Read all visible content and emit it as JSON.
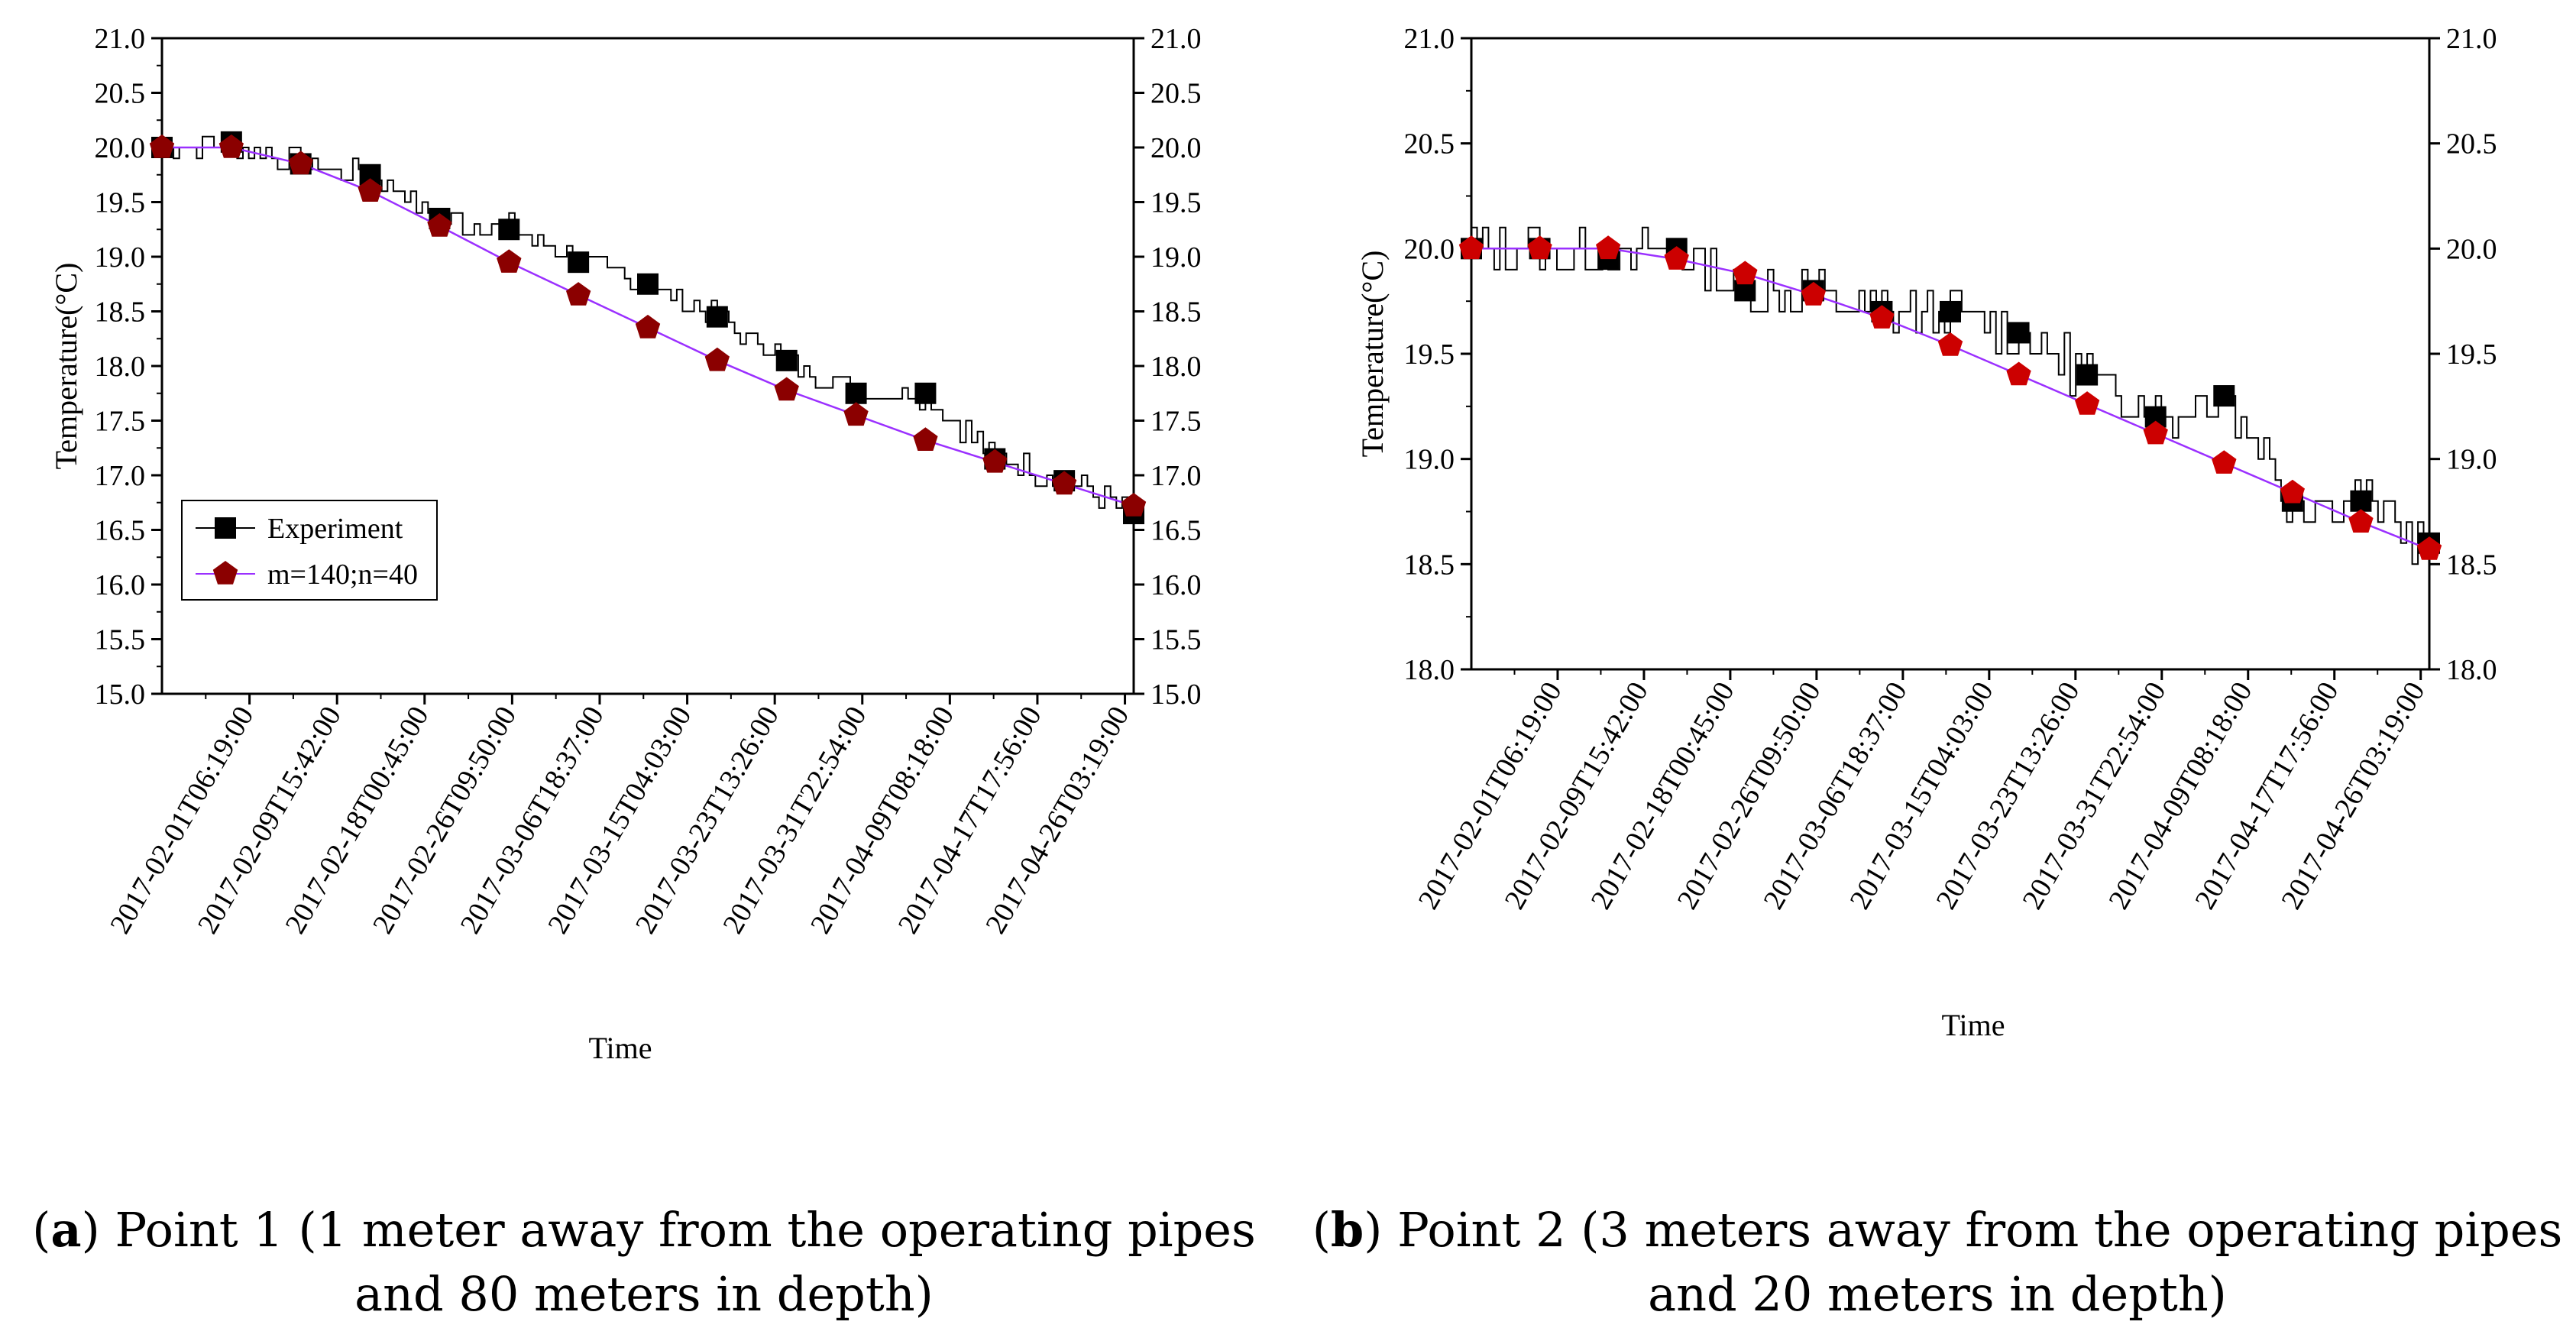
{
  "chart_data": [
    {
      "type": "line",
      "panel": "a",
      "xlabel": "Time",
      "ylabel": "Temperature(°C)",
      "ylim": [
        15.0,
        21.0
      ],
      "yticks": [
        15.0,
        15.5,
        16.0,
        16.5,
        17.0,
        17.5,
        18.0,
        18.5,
        19.0,
        19.5,
        20.0,
        20.5,
        21.0
      ],
      "ytick_labels": [
        "15.0",
        "15.5",
        "16.0",
        "16.5",
        "17.0",
        "17.5",
        "18.0",
        "18.5",
        "19.0",
        "19.5",
        "20.0",
        "20.5",
        "21.0"
      ],
      "categories": [
        "2017-02-01T06:19:00",
        "2017-02-09T15:42:00",
        "2017-02-18T00:45:00",
        "2017-02-26T09:50:00",
        "2017-03-06T18:37:00",
        "2017-03-15T04:03:00",
        "2017-03-23T13:26:00",
        "2017-03-31T22:54:00",
        "2017-04-09T08:18:00",
        "2017-04-17T17:56:00",
        "2017-04-26T03:19:00"
      ],
      "series": [
        {
          "name": "Experiment",
          "color": "#000000",
          "marker": "square",
          "markers": [
            20.0,
            20.05,
            19.85,
            19.75,
            19.35,
            19.25,
            18.95,
            18.75,
            18.45,
            18.05,
            17.75,
            17.75,
            17.15,
            16.95,
            16.65
          ]
        },
        {
          "name": "m=140;n=40",
          "color": "#9b30ff",
          "marker": "pentagon",
          "marker_color": "#8b0000",
          "markers": [
            20.0,
            20.0,
            19.85,
            19.6,
            19.28,
            18.95,
            18.65,
            18.35,
            18.05,
            17.78,
            17.55,
            17.32,
            17.12,
            16.92,
            16.72
          ]
        }
      ],
      "legend": {
        "position": "lower-left",
        "entries": [
          "Experiment",
          "m=140;n=40"
        ]
      }
    },
    {
      "type": "line",
      "panel": "b",
      "xlabel": "Time",
      "ylabel": "Temperature(°C)",
      "ylim": [
        18.0,
        21.0
      ],
      "yticks": [
        18.0,
        18.5,
        19.0,
        19.5,
        20.0,
        20.5,
        21.0
      ],
      "ytick_labels": [
        "18.0",
        "18.5",
        "19.0",
        "19.5",
        "20.0",
        "20.5",
        "21.0"
      ],
      "categories": [
        "2017-02-01T06:19:00",
        "2017-02-09T15:42:00",
        "2017-02-18T00:45:00",
        "2017-02-26T09:50:00",
        "2017-03-06T18:37:00",
        "2017-03-15T04:03:00",
        "2017-03-23T13:26:00",
        "2017-03-31T22:54:00",
        "2017-04-09T08:18:00",
        "2017-04-17T17:56:00",
        "2017-04-26T03:19:00"
      ],
      "series": [
        {
          "name": "Experiment",
          "color": "#000000",
          "marker": "square",
          "markers": [
            20.0,
            20.0,
            19.95,
            20.0,
            19.8,
            19.8,
            19.7,
            19.7,
            19.6,
            19.4,
            19.2,
            19.3,
            18.8,
            18.8,
            18.6
          ]
        },
        {
          "name": "m=140;n=40",
          "color": "#9b30ff",
          "marker": "pentagon",
          "marker_color": "#cc0000",
          "markers": [
            20.0,
            20.0,
            20.0,
            19.95,
            19.88,
            19.78,
            19.67,
            19.54,
            19.4,
            19.26,
            19.12,
            18.98,
            18.84,
            18.7,
            18.57
          ]
        }
      ]
    }
  ],
  "captions": {
    "a": {
      "label": "(a)",
      "line1": " Point 1 (1 meter away from the operating pipes",
      "line2": "and 80 meters in depth)"
    },
    "b": {
      "label": "(b)",
      "line1": " Point 2 (3 meters away from the operating pipes",
      "line2": "and 20 meters in depth)"
    }
  }
}
